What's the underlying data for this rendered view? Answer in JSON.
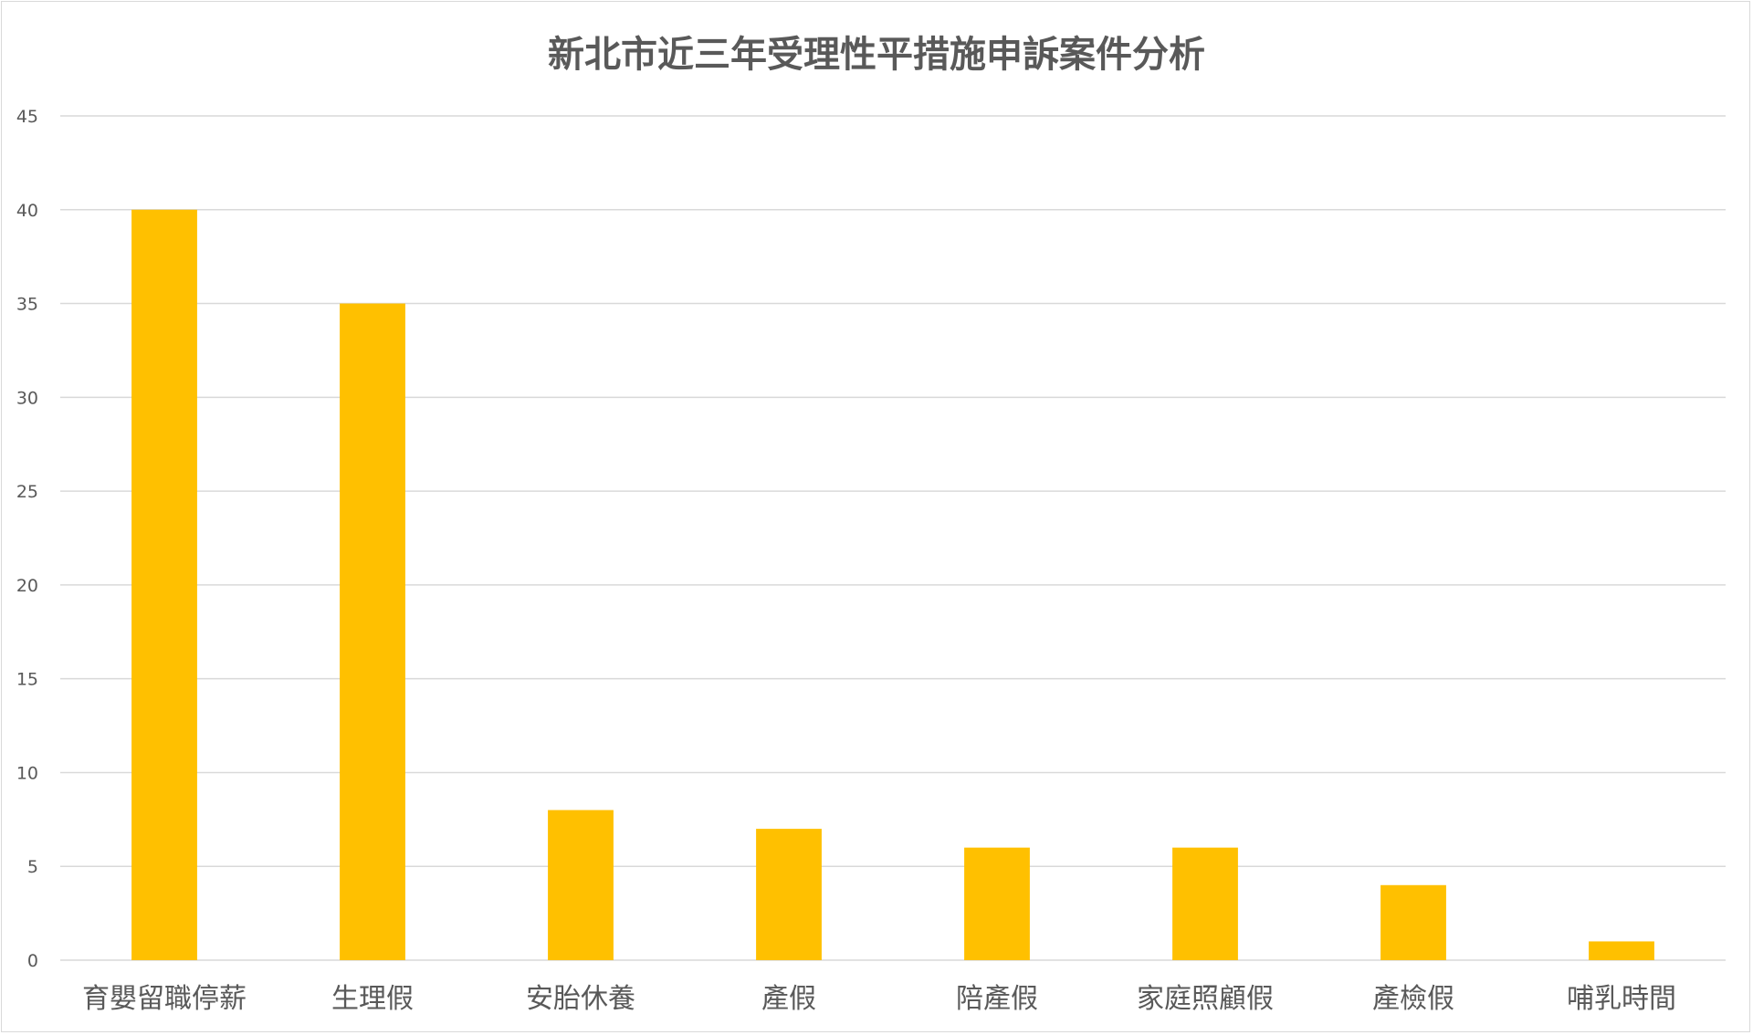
{
  "chart_data": {
    "type": "bar",
    "title": "新北市近三年受理性平措施申訴案件分析",
    "categories": [
      "育嬰留職停薪",
      "生理假",
      "安胎休養",
      "產假",
      "陪產假",
      "家庭照顧假",
      "產檢假",
      "哺乳時間"
    ],
    "values": [
      40,
      35,
      8,
      7,
      6,
      6,
      4,
      1
    ],
    "xlabel": "",
    "ylabel": "",
    "ylim": [
      0,
      45
    ],
    "yticks": [
      0,
      5,
      10,
      15,
      20,
      25,
      30,
      35,
      40,
      45
    ],
    "grid": true,
    "legend": "none",
    "colors": {
      "bar": "#FFC000",
      "grid": "#D9D9D9",
      "text": "#595959",
      "title": "#595959"
    }
  }
}
